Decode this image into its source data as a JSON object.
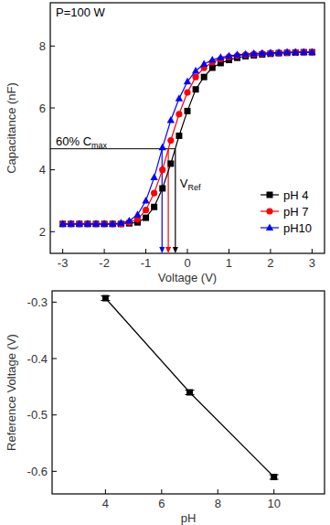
{
  "chart_data": [
    {
      "type": "line",
      "title": "P=100 W",
      "x_label": "Voltage (V)",
      "y_label": "Capacitance (nF)",
      "x": [
        -3,
        -2.8,
        -2.6,
        -2.4,
        -2.2,
        -2,
        -1.8,
        -1.6,
        -1.4,
        -1.2,
        -1,
        -0.8,
        -0.6,
        -0.4,
        -0.2,
        0,
        0.2,
        0.4,
        0.6,
        0.8,
        1,
        1.2,
        1.4,
        1.6,
        1.8,
        2,
        2.2,
        2.4,
        2.6,
        2.8,
        3
      ],
      "series": [
        {
          "name": "pH 4",
          "color": "#000000",
          "marker": "square",
          "values": [
            2.25,
            2.25,
            2.25,
            2.25,
            2.25,
            2.25,
            2.25,
            2.25,
            2.27,
            2.3,
            2.45,
            2.8,
            3.4,
            4.2,
            5.1,
            5.9,
            6.6,
            7.0,
            7.3,
            7.45,
            7.55,
            7.62,
            7.67,
            7.7,
            7.73,
            7.75,
            7.77,
            7.78,
            7.79,
            7.8,
            7.8
          ]
        },
        {
          "name": "pH 7",
          "color": "#ff0000",
          "marker": "circle",
          "values": [
            2.25,
            2.25,
            2.25,
            2.25,
            2.25,
            2.25,
            2.25,
            2.25,
            2.3,
            2.4,
            2.7,
            3.25,
            4.0,
            4.95,
            5.8,
            6.5,
            7.0,
            7.3,
            7.48,
            7.58,
            7.65,
            7.69,
            7.72,
            7.74,
            7.76,
            7.77,
            7.78,
            7.79,
            7.8,
            7.8,
            7.8
          ]
        },
        {
          "name": "pH10",
          "color": "#0000ff",
          "marker": "triangle",
          "values": [
            2.25,
            2.25,
            2.25,
            2.25,
            2.25,
            2.25,
            2.25,
            2.28,
            2.35,
            2.55,
            3.0,
            3.75,
            4.72,
            5.6,
            6.3,
            6.85,
            7.2,
            7.42,
            7.55,
            7.63,
            7.68,
            7.72,
            7.74,
            7.76,
            7.77,
            7.78,
            7.79,
            7.8,
            7.8,
            7.8,
            7.8
          ]
        }
      ],
      "xlim": [
        -3.3,
        3.3
      ],
      "xticks": [
        -3,
        -2,
        -1,
        0,
        1,
        2,
        3
      ],
      "ylim": [
        1.3,
        9.4
      ],
      "yticks": [
        2,
        4,
        6,
        8
      ],
      "legend": "lower right",
      "annotations": {
        "threshold": {
          "text": "60% C",
          "sub": "max",
          "y": 4.68
        },
        "reference": {
          "text": "V",
          "sub": "Ref",
          "x": [
            -0.29,
            -0.46,
            -0.61
          ]
        }
      }
    },
    {
      "type": "line",
      "x_label": "pH",
      "y_label": "Reference Voltage (V)",
      "x": [
        4,
        7,
        10
      ],
      "series": [
        {
          "color": "#000000",
          "marker": "square",
          "values": [
            -0.293,
            -0.46,
            -0.61
          ],
          "errors": [
            0.004,
            0.004,
            0.004
          ]
        }
      ],
      "xlim": [
        2.1,
        11.8
      ],
      "xticks": [
        4,
        6,
        8,
        10
      ],
      "ylim": [
        -0.64,
        -0.28
      ],
      "yticks": [
        -0.3,
        -0.4,
        -0.5,
        -0.6
      ]
    }
  ]
}
